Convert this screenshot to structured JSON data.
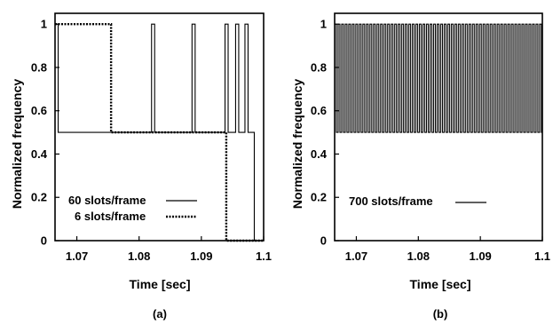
{
  "chart_data": [
    {
      "type": "line",
      "panel": "(a)",
      "xlabel": "Time [sec]",
      "ylabel": "Normalized frequency",
      "xlim": [
        1.0665,
        1.1
      ],
      "ylim": [
        0,
        1.05
      ],
      "xticks": [
        "1.07",
        "1.08",
        "1.09",
        "1.1"
      ],
      "yticks": [
        "0",
        "0.2",
        "0.4",
        "0.6",
        "0.8",
        "1"
      ],
      "grid": false,
      "legend_position": "bottom-left",
      "series": [
        {
          "name": "60 slots/frame",
          "style": "solid",
          "points": [
            [
              1.0665,
              1.0
            ],
            [
              1.067,
              1.0
            ],
            [
              1.067,
              0.5
            ],
            [
              1.082,
              0.5
            ],
            [
              1.082,
              1.0
            ],
            [
              1.0825,
              1.0
            ],
            [
              1.0825,
              0.5
            ],
            [
              1.0885,
              0.5
            ],
            [
              1.0885,
              1.0
            ],
            [
              1.089,
              1.0
            ],
            [
              1.089,
              0.5
            ],
            [
              1.0938,
              0.5
            ],
            [
              1.0938,
              1.0
            ],
            [
              1.0943,
              1.0
            ],
            [
              1.0943,
              0.5
            ],
            [
              1.0955,
              0.5
            ],
            [
              1.0955,
              1.0
            ],
            [
              1.096,
              1.0
            ],
            [
              1.096,
              0.5
            ],
            [
              1.097,
              0.5
            ],
            [
              1.097,
              1.0
            ],
            [
              1.0975,
              1.0
            ],
            [
              1.0975,
              0.5
            ],
            [
              1.0985,
              0.5
            ],
            [
              1.0985,
              0.0
            ],
            [
              1.1,
              0.0
            ]
          ]
        },
        {
          "name": "6 slots/frame",
          "style": "dotted",
          "points": [
            [
              1.0665,
              1.0
            ],
            [
              1.0755,
              1.0
            ],
            [
              1.0755,
              0.5
            ],
            [
              1.094,
              0.5
            ],
            [
              1.094,
              0.0
            ],
            [
              1.1,
              0.0
            ]
          ]
        }
      ],
      "legend": [
        "60 slots/frame",
        "6 slots/frame"
      ]
    },
    {
      "type": "line",
      "panel": "(b)",
      "xlabel": "Time [sec]",
      "ylabel": "Normalized frequency",
      "xlim": [
        1.0665,
        1.1
      ],
      "ylim": [
        0,
        1.05
      ],
      "xticks": [
        "1.07",
        "1.08",
        "1.09",
        "1.1"
      ],
      "yticks": [
        "0",
        "0.2",
        "0.4",
        "0.6",
        "0.8",
        "1"
      ],
      "grid": false,
      "legend_position": "bottom-left",
      "series": [
        {
          "name": "700 slots/frame",
          "style": "solid",
          "oscillation": {
            "x_start": 1.0665,
            "x_end": 1.1,
            "low": 0.5,
            "high": 1.0,
            "period": 0.00057
          }
        }
      ],
      "legend": [
        "700 slots/frame"
      ]
    }
  ]
}
